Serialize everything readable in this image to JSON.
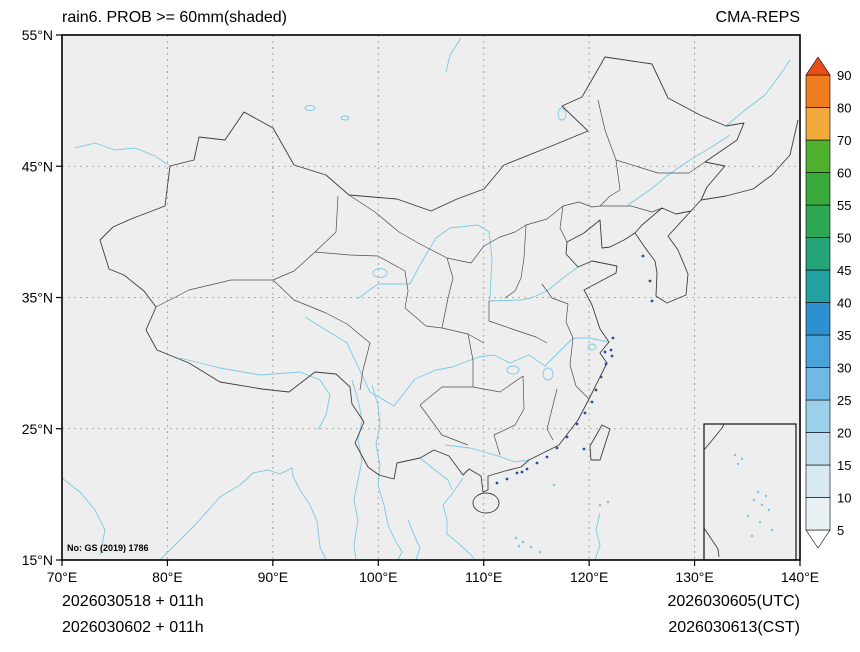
{
  "header": {
    "title": "rain6. PROB >= 60mm(shaded)",
    "model": "CMA-REPS"
  },
  "map_note": "No: GS (2019) 1786",
  "footer": {
    "left_line1": "2026030518 + 011h",
    "left_line2": "2026030602 + 011h",
    "right_line1": "2026030605(UTC)",
    "right_line2": "2026030613(CST)"
  },
  "chart_data": {
    "type": "map",
    "title": "rain6. PROB >= 60mm(shaded)",
    "model": "CMA-REPS",
    "region": "China and surrounding areas",
    "grid": "dashed graticule every 10 degrees",
    "x_axis": {
      "values": [
        70,
        80,
        90,
        100,
        110,
        120,
        130,
        140
      ],
      "tick_labels": [
        "70°E",
        "80°E",
        "90°E",
        "100°E",
        "110°E",
        "120°E",
        "130°E",
        "140°E"
      ],
      "range": [
        70,
        140
      ]
    },
    "y_axis": {
      "values": [
        15,
        25,
        35,
        45,
        55
      ],
      "tick_labels": [
        "15°N",
        "25°N",
        "35°N",
        "45°N",
        "55°N"
      ],
      "range": [
        15,
        55
      ]
    },
    "colorbar": {
      "levels": [
        5,
        10,
        15,
        20,
        25,
        30,
        35,
        40,
        45,
        50,
        55,
        60,
        70,
        80,
        90
      ],
      "colors": [
        "#ffffff",
        "#eaf1f5",
        "#d8e9f2",
        "#bfdff0",
        "#9bd0ea",
        "#70b9e4",
        "#49a4dc",
        "#2d91cf",
        "#23a0a0",
        "#27a379",
        "#2ea754",
        "#38ab3c",
        "#4fb12e",
        "#f2a93c",
        "#ee7d20",
        "#e74e17"
      ],
      "extend": "both",
      "legend_position": "right"
    },
    "shaded_areas_visible": "none"
  }
}
